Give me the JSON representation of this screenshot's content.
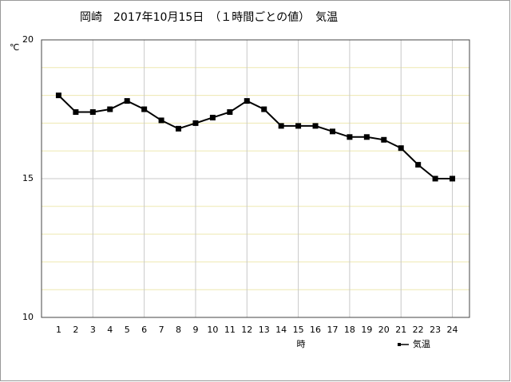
{
  "chart_data": {
    "type": "line",
    "title": "岡崎　2017年10月15日　（１時間ごとの値）　気温",
    "x_label": "時",
    "y_label": "℃",
    "x": [
      1,
      2,
      3,
      4,
      5,
      6,
      7,
      8,
      9,
      10,
      11,
      12,
      13,
      14,
      15,
      16,
      17,
      18,
      19,
      20,
      21,
      22,
      23,
      24
    ],
    "xlim": [
      0,
      25
    ],
    "xticks": [
      1,
      2,
      3,
      4,
      5,
      6,
      7,
      8,
      9,
      10,
      11,
      12,
      13,
      14,
      15,
      16,
      17,
      18,
      19,
      20,
      21,
      22,
      23,
      24
    ],
    "ylim": [
      10,
      20
    ],
    "yticks": [
      10,
      15,
      20
    ],
    "grid": true,
    "legend": "bottom-right",
    "series": [
      {
        "name": "気温",
        "color": "#000000",
        "values": [
          18.0,
          17.4,
          17.4,
          17.5,
          17.8,
          17.5,
          17.1,
          16.8,
          17.0,
          17.2,
          17.4,
          17.8,
          17.5,
          16.9,
          16.9,
          16.9,
          16.7,
          16.5,
          16.5,
          16.4,
          16.1,
          15.5,
          15.0,
          15.0
        ]
      }
    ]
  }
}
